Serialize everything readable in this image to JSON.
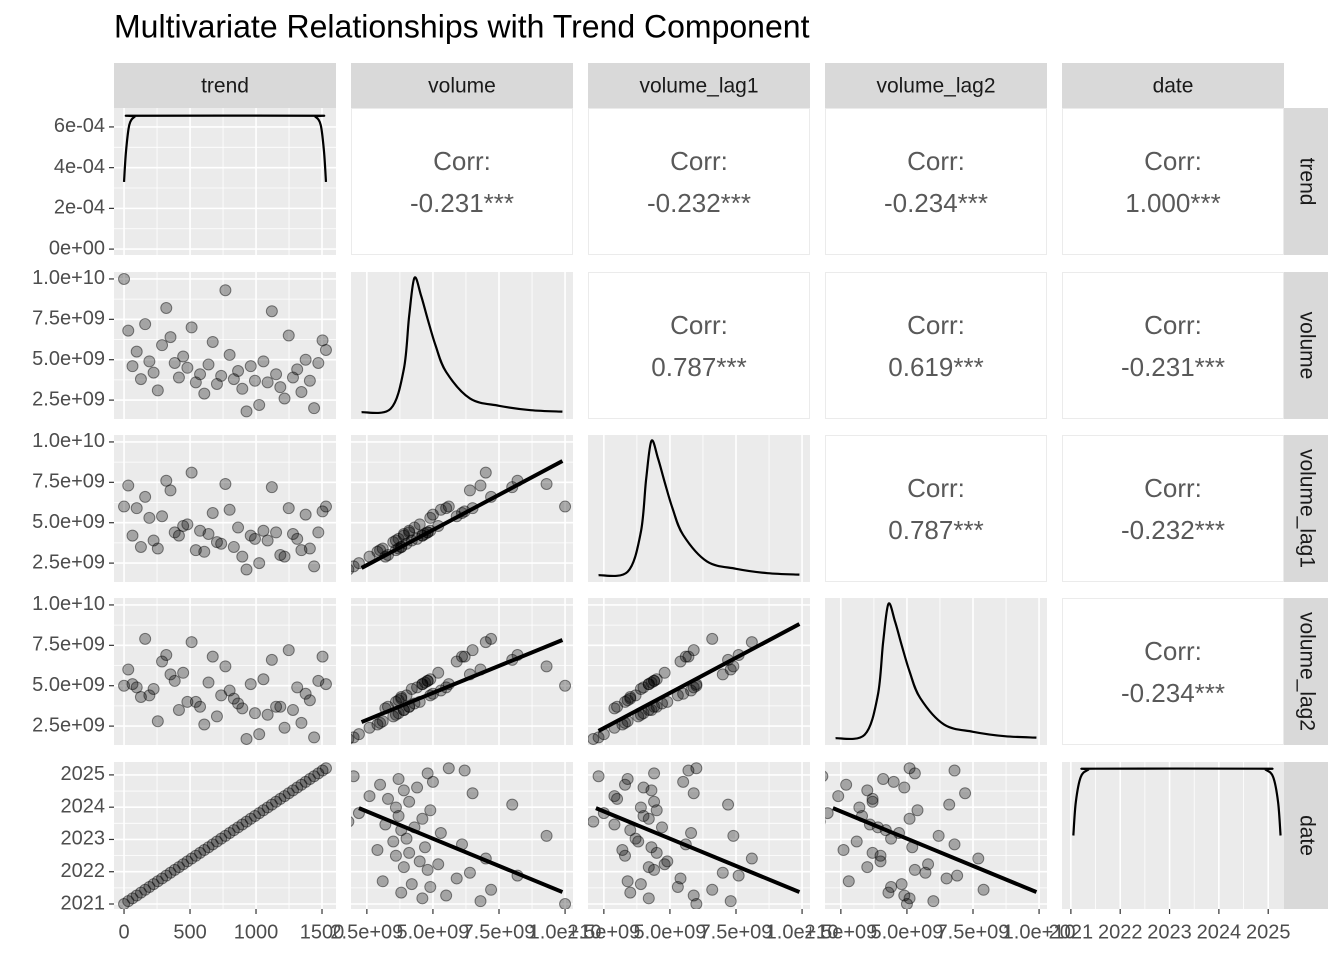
{
  "chart_data": {
    "type": "pairs",
    "title": "Multivariate Relationships with Trend Component",
    "variables": [
      {
        "name": "trend",
        "xlim": [
          -76,
          1606
        ],
        "xticks": [
          0,
          500,
          1000,
          1500
        ],
        "ylim": [
          -2.9e-05,
          0.000693
        ],
        "yticks": [
          {
            "value": 0,
            "label": "0e+00"
          },
          {
            "value": 0.0002,
            "label": "2e-04"
          },
          {
            "value": 0.0004,
            "label": "4e-04"
          },
          {
            "value": 0.0006,
            "label": "6e-04"
          }
        ]
      },
      {
        "name": "volume",
        "xlim": [
          1900000000.0,
          10300000000.0
        ],
        "xticks": [
          {
            "value": 2500000000.0,
            "label": "2.5e+09"
          },
          {
            "value": 5000000000.0,
            "label": "5.0e+09"
          },
          {
            "value": 7500000000.0,
            "label": "7.5e+09"
          },
          {
            "value": 10000000000.0,
            "label": "1.0e+10"
          }
        ],
        "ylim": [
          1330000000.0,
          10430000000.0
        ],
        "yticks": [
          {
            "value": 2500000000.0,
            "label": "2.5e+09"
          },
          {
            "value": 5000000000.0,
            "label": "5.0e+09"
          },
          {
            "value": 7500000000.0,
            "label": "7.5e+09"
          },
          {
            "value": 10000000000.0,
            "label": "1.0e+10"
          }
        ]
      },
      {
        "name": "volume_lag1",
        "xlim": [
          1900000000.0,
          10300000000.0
        ],
        "xticks": [
          {
            "value": 2500000000.0,
            "label": "2.5e+09"
          },
          {
            "value": 5000000000.0,
            "label": "5.0e+09"
          },
          {
            "value": 7500000000.0,
            "label": "7.5e+09"
          },
          {
            "value": 10000000000.0,
            "label": "1.0e+10"
          }
        ],
        "ylim": [
          1330000000.0,
          10430000000.0
        ],
        "yticks": [
          {
            "value": 2500000000.0,
            "label": "2.5e+09"
          },
          {
            "value": 5000000000.0,
            "label": "5.0e+09"
          },
          {
            "value": 7500000000.0,
            "label": "7.5e+09"
          },
          {
            "value": 10000000000.0,
            "label": "1.0e+10"
          }
        ]
      },
      {
        "name": "volume_lag2",
        "xlim": [
          1900000000.0,
          10300000000.0
        ],
        "xticks": [
          {
            "value": 2500000000.0,
            "label": "2.5e+09"
          },
          {
            "value": 5000000000.0,
            "label": "5.0e+09"
          },
          {
            "value": 7500000000.0,
            "label": "7.5e+09"
          },
          {
            "value": 10000000000.0,
            "label": "1.0e+10"
          }
        ],
        "ylim": [
          1330000000.0,
          10430000000.0
        ],
        "yticks": [
          {
            "value": 2500000000.0,
            "label": "2.5e+09"
          },
          {
            "value": 5000000000.0,
            "label": "5.0e+09"
          },
          {
            "value": 7500000000.0,
            "label": "7.5e+09"
          },
          {
            "value": 10000000000.0,
            "label": "1.0e+10"
          }
        ]
      },
      {
        "name": "date",
        "xlim": [
          2020.82,
          2025.32
        ],
        "xticks": [
          2021,
          2022,
          2023,
          2024,
          2025
        ],
        "ylim": [
          2020.845,
          2025.4
        ],
        "yticks": [
          2021,
          2022,
          2023,
          2024,
          2025
        ]
      }
    ],
    "correlations": [
      [
        {
          "label": "Corr:",
          "value": -0.231,
          "value_label": "-0.231***"
        },
        {
          "label": "Corr:",
          "value": -0.232,
          "value_label": "-0.232***"
        },
        {
          "label": "Corr:",
          "value": -0.234,
          "value_label": "-0.234***"
        },
        {
          "label": "Corr:",
          "value": 1.0,
          "value_label": "1.000***"
        }
      ],
      [
        {
          "label": "Corr:",
          "value": 0.787,
          "value_label": "0.787***"
        },
        {
          "label": "Corr:",
          "value": 0.619,
          "value_label": "0.619***"
        },
        {
          "label": "Corr:",
          "value": -0.231,
          "value_label": "-0.231***"
        }
      ],
      [
        {
          "label": "Corr:",
          "value": 0.787,
          "value_label": "0.787***"
        },
        {
          "label": "Corr:",
          "value": -0.232,
          "value_label": "-0.232***"
        }
      ],
      [
        {
          "label": "Corr:",
          "value": -0.234,
          "value_label": "-0.234***"
        }
      ]
    ],
    "densities": [
      {
        "x": [
          0,
          15,
          40,
          80,
          120,
          1410,
          1450,
          1490,
          1515,
          1530
        ],
        "y": [
          0.00033,
          0.00048,
          0.00061,
          0.00065,
          0.000655,
          0.000655,
          0.00065,
          0.00061,
          0.00048,
          0.00033
        ],
        "ylim": [
          -2.9e-05,
          0.000693
        ]
      },
      {
        "x": [
          2300000000.0,
          3400000000.0,
          3900000000.0,
          4100000000.0,
          4300000000.0,
          4550000000.0,
          4800000000.0,
          5100000000.0,
          5500000000.0,
          6400000000.0,
          7500000000.0,
          8700000000.0,
          9900000000.0
        ],
        "y": [
          3e-12,
          1.5e-11,
          1.5e-10,
          3.3e-10,
          4.6e-10,
          4e-10,
          3.2e-10,
          2.3e-10,
          1.4e-10,
          5e-11,
          2.5e-11,
          1e-11,
          5e-12
        ],
        "ylim": [
          -2e-11,
          4.8e-10
        ]
      },
      {
        "x": [
          2300000000.0,
          3400000000.0,
          3900000000.0,
          4100000000.0,
          4300000000.0,
          4550000000.0,
          4800000000.0,
          5100000000.0,
          5500000000.0,
          6400000000.0,
          7500000000.0,
          8700000000.0,
          9900000000.0
        ],
        "y": [
          3e-12,
          1.5e-11,
          1.5e-10,
          3.3e-10,
          4.6e-10,
          4e-10,
          3.2e-10,
          2.3e-10,
          1.4e-10,
          5e-11,
          2.5e-11,
          1e-11,
          5e-12
        ],
        "ylim": [
          -2e-11,
          4.8e-10
        ]
      },
      {
        "x": [
          2300000000.0,
          3400000000.0,
          3900000000.0,
          4100000000.0,
          4300000000.0,
          4550000000.0,
          4800000000.0,
          5100000000.0,
          5500000000.0,
          6400000000.0,
          7500000000.0,
          8700000000.0,
          9900000000.0
        ],
        "y": [
          3e-12,
          1.5e-11,
          1.5e-10,
          3.3e-10,
          4.6e-10,
          4e-10,
          3.2e-10,
          2.3e-10,
          1.4e-10,
          5e-11,
          2.5e-11,
          1e-11,
          5e-12
        ],
        "ylim": [
          -2e-11,
          4.8e-10
        ]
      },
      {
        "x": [
          2021.05,
          2021.1,
          2021.2,
          2021.35,
          2021.5,
          2024.8,
          2024.95,
          2025.1,
          2025.2,
          2025.25
        ],
        "y": [
          0.12,
          0.18,
          0.225,
          0.238,
          0.24,
          0.24,
          0.238,
          0.225,
          0.18,
          0.12
        ],
        "ylim": [
          -0.012,
          0.252
        ]
      }
    ],
    "fits": [
      {
        "x_variable": "volume",
        "y_variable": "volume_lag1",
        "x": [
          2300000000.0,
          9900000000.0
        ],
        "y": [
          2200000000.0,
          8820000000.0
        ]
      },
      {
        "x_variable": "volume",
        "y_variable": "volume_lag2",
        "x": [
          2300000000.0,
          9900000000.0
        ],
        "y": [
          2750000000.0,
          7830000000.0
        ]
      },
      {
        "x_variable": "volume_lag1",
        "y_variable": "volume_lag2",
        "x": [
          2300000000.0,
          9900000000.0
        ],
        "y": [
          2200000000.0,
          8820000000.0
        ]
      },
      {
        "x_variable": "volume",
        "y_variable": "date",
        "x": [
          2200000000.0,
          9900000000.0
        ],
        "y": [
          2023.97,
          2021.37
        ]
      },
      {
        "x_variable": "volume_lag1",
        "y_variable": "date",
        "x": [
          2200000000.0,
          9900000000.0
        ],
        "y": [
          2023.97,
          2021.37
        ]
      },
      {
        "x_variable": "volume_lag2",
        "y_variable": "date",
        "x": [
          2200000000.0,
          9900000000.0
        ],
        "y": [
          2023.97,
          2021.37
        ]
      }
    ],
    "observations": [
      [
        0,
        10000000000.0,
        6000000000.0,
        5000000000.0,
        2021.0
      ],
      [
        32,
        6800000000.0,
        7300000000.0,
        6000000000.0,
        2021.088
      ],
      [
        64,
        4600000000.0,
        4200000000.0,
        5100000000.0,
        2021.176
      ],
      [
        96,
        5500000000.0,
        5900000000.0,
        4900000000.0,
        2021.264
      ],
      [
        128,
        3800000000.0,
        3500000000.0,
        4300000000.0,
        2021.352
      ],
      [
        160,
        7200000000.0,
        6600000000.0,
        7900000000.0,
        2021.44
      ],
      [
        192,
        4900000000.0,
        5300000000.0,
        4400000000.0,
        2021.528
      ],
      [
        224,
        4200000000.0,
        3900000000.0,
        4800000000.0,
        2021.616
      ],
      [
        256,
        3100000000.0,
        3400000000.0,
        2800000000.0,
        2021.704
      ],
      [
        288,
        5900000000.0,
        5400000000.0,
        6500000000.0,
        2021.792
      ],
      [
        320,
        8200000000.0,
        7600000000.0,
        6900000000.0,
        2021.88
      ],
      [
        352,
        6400000000.0,
        7000000000.0,
        5700000000.0,
        2021.968
      ],
      [
        384,
        4800000000.0,
        4400000000.0,
        5300000000.0,
        2022.056
      ],
      [
        416,
        3900000000.0,
        4200000000.0,
        3500000000.0,
        2022.144
      ],
      [
        448,
        5200000000.0,
        4800000000.0,
        5800000000.0,
        2022.232
      ],
      [
        480,
        4500000000.0,
        4900000000.0,
        4000000000.0,
        2022.32
      ],
      [
        512,
        7000000000.0,
        8100000000.0,
        7700000000.0,
        2022.408
      ],
      [
        544,
        3600000000.0,
        3300000000.0,
        4000000000.0,
        2022.496
      ],
      [
        576,
        4100000000.0,
        4500000000.0,
        3700000000.0,
        2022.584
      ],
      [
        608,
        2900000000.0,
        3200000000.0,
        2600000000.0,
        2022.672
      ],
      [
        640,
        4700000000.0,
        4300000000.0,
        5200000000.0,
        2022.76
      ],
      [
        672,
        6100000000.0,
        5600000000.0,
        6800000000.0,
        2022.848
      ],
      [
        704,
        3500000000.0,
        3800000000.0,
        3100000000.0,
        2022.936
      ],
      [
        736,
        4000000000.0,
        3700000000.0,
        4400000000.0,
        2023.024
      ],
      [
        768,
        9300000000.0,
        7400000000.0,
        6200000000.0,
        2023.112
      ],
      [
        800,
        5300000000.0,
        5800000000.0,
        4700000000.0,
        2023.2
      ],
      [
        832,
        3800000000.0,
        3500000000.0,
        4200000000.0,
        2023.288
      ],
      [
        864,
        4300000000.0,
        4700000000.0,
        3900000000.0,
        2023.376
      ],
      [
        896,
        3200000000.0,
        2900000000.0,
        3600000000.0,
        2023.464
      ],
      [
        928,
        1800000000.0,
        2100000000.0,
        1700000000.0,
        2023.552
      ],
      [
        960,
        4600000000.0,
        4200000000.0,
        5100000000.0,
        2023.64
      ],
      [
        992,
        3700000000.0,
        4000000000.0,
        3300000000.0,
        2023.728
      ],
      [
        1024,
        2200000000.0,
        2500000000.0,
        2000000000.0,
        2023.816
      ],
      [
        1056,
        4900000000.0,
        4500000000.0,
        5400000000.0,
        2023.904
      ],
      [
        1088,
        3600000000.0,
        3900000000.0,
        3200000000.0,
        2023.992
      ],
      [
        1120,
        8000000000.0,
        7200000000.0,
        6600000000.0,
        2024.08
      ],
      [
        1152,
        4100000000.0,
        4400000000.0,
        3700000000.0,
        2024.168
      ],
      [
        1184,
        3300000000.0,
        3000000000.0,
        3700000000.0,
        2024.256
      ],
      [
        1216,
        2600000000.0,
        2900000000.0,
        2400000000.0,
        2024.344
      ],
      [
        1248,
        6500000000.0,
        5900000000.0,
        7200000000.0,
        2024.432
      ],
      [
        1280,
        3900000000.0,
        4300000000.0,
        3500000000.0,
        2024.52
      ],
      [
        1312,
        4400000000.0,
        4000000000.0,
        4900000000.0,
        2024.608
      ],
      [
        1344,
        3000000000.0,
        3300000000.0,
        2700000000.0,
        2024.696
      ],
      [
        1376,
        5000000000.0,
        5500000000.0,
        4500000000.0,
        2024.784
      ],
      [
        1408,
        3700000000.0,
        3400000000.0,
        4100000000.0,
        2024.872
      ],
      [
        1440,
        2000000000.0,
        2300000000.0,
        1800000000.0,
        2024.96
      ],
      [
        1472,
        4800000000.0,
        4400000000.0,
        5300000000.0,
        2025.048
      ],
      [
        1504,
        6200000000.0,
        5700000000.0,
        6800000000.0,
        2025.136
      ],
      [
        1530,
        5600000000.0,
        6000000000.0,
        5100000000.0,
        2025.208
      ]
    ]
  }
}
